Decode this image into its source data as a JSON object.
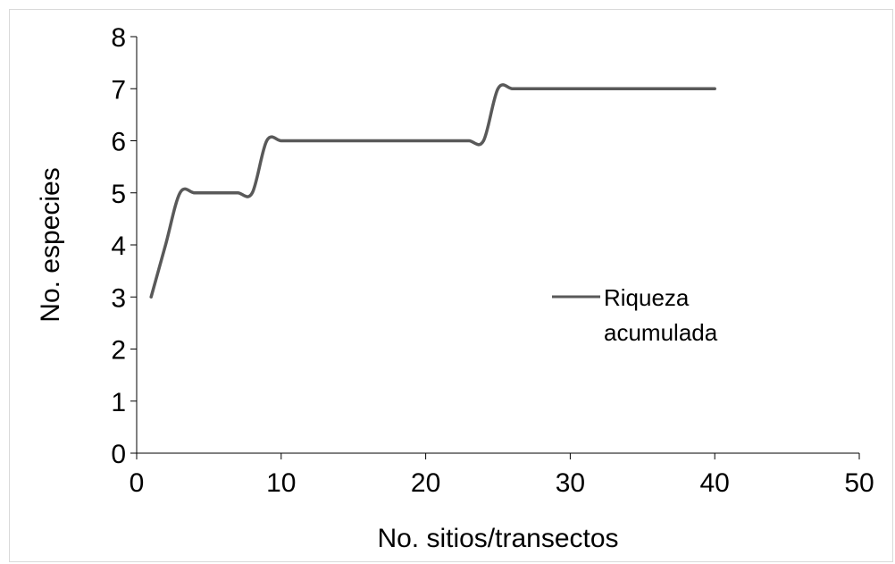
{
  "chart_data": {
    "type": "line",
    "xlabel": "No. sitios/transectos",
    "ylabel": "No. especies",
    "xlim": [
      0,
      50
    ],
    "ylim": [
      0,
      8
    ],
    "xticks": [
      0,
      10,
      20,
      30,
      40,
      50
    ],
    "yticks": [
      0,
      1,
      2,
      3,
      4,
      5,
      6,
      7,
      8
    ],
    "grid": false,
    "legend_position": "center-right",
    "series": [
      {
        "name": "Riqueza acumulada",
        "name_lines": [
          "Riqueza",
          "acumulada"
        ],
        "color": "#595959",
        "smooth": true,
        "x": [
          1,
          2,
          3,
          4,
          5,
          6,
          7,
          8,
          9,
          10,
          11,
          12,
          13,
          14,
          15,
          16,
          17,
          18,
          19,
          20,
          21,
          22,
          23,
          24,
          25,
          26,
          27,
          28,
          29,
          30,
          31,
          32,
          33,
          34,
          35,
          36,
          37,
          38,
          39,
          40
        ],
        "y": [
          3,
          4,
          5,
          5,
          5,
          5,
          5,
          5,
          6,
          6,
          6,
          6,
          6,
          6,
          6,
          6,
          6,
          6,
          6,
          6,
          6,
          6,
          6,
          6,
          7,
          7,
          7,
          7,
          7,
          7,
          7,
          7,
          7,
          7,
          7,
          7,
          7,
          7,
          7,
          7
        ]
      }
    ]
  }
}
